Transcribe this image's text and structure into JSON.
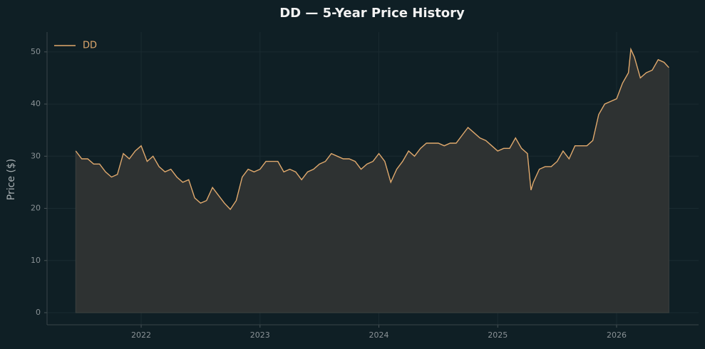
{
  "chart_data": {
    "type": "line",
    "title": "DD — 5-Year Price History",
    "ylabel": "Price ($)",
    "x": [
      2021.45,
      2021.5,
      2021.55,
      2021.6,
      2021.65,
      2021.7,
      2021.75,
      2021.8,
      2021.85,
      2021.9,
      2021.95,
      2022.0,
      2022.05,
      2022.1,
      2022.15,
      2022.2,
      2022.25,
      2022.3,
      2022.35,
      2022.4,
      2022.45,
      2022.5,
      2022.55,
      2022.6,
      2022.65,
      2022.7,
      2022.75,
      2022.8,
      2022.85,
      2022.9,
      2022.95,
      2023.0,
      2023.05,
      2023.1,
      2023.15,
      2023.2,
      2023.25,
      2023.3,
      2023.35,
      2023.4,
      2023.45,
      2023.5,
      2023.55,
      2023.6,
      2023.65,
      2023.7,
      2023.75,
      2023.8,
      2023.85,
      2023.9,
      2023.95,
      2024.0,
      2024.05,
      2024.1,
      2024.15,
      2024.2,
      2024.25,
      2024.3,
      2024.35,
      2024.4,
      2024.45,
      2024.5,
      2024.55,
      2024.6,
      2024.65,
      2024.7,
      2024.75,
      2024.8,
      2024.85,
      2024.9,
      2024.95,
      2025.0,
      2025.05,
      2025.1,
      2025.15,
      2025.2,
      2025.25,
      2025.28,
      2025.3,
      2025.35,
      2025.4,
      2025.45,
      2025.5,
      2025.55,
      2025.6,
      2025.65,
      2025.7,
      2025.75,
      2025.8,
      2025.85,
      2025.9,
      2025.95,
      2026.0,
      2026.05,
      2026.1,
      2026.12,
      2026.15,
      2026.2,
      2026.25,
      2026.3,
      2026.35,
      2026.4,
      2026.44
    ],
    "series": [
      {
        "name": "DD",
        "color": "#e0a96d",
        "fill": "#2e3232",
        "values": [
          31,
          29.5,
          29.5,
          28.5,
          28.5,
          27,
          26,
          26.5,
          30.5,
          29.5,
          31,
          32,
          29,
          30,
          28,
          27,
          27.5,
          26,
          25,
          25.5,
          22,
          21,
          21.5,
          24,
          22.5,
          21,
          19.8,
          21.5,
          26,
          27.5,
          27,
          27.5,
          29,
          29,
          29,
          27,
          27.5,
          27,
          25.5,
          27,
          27.5,
          28.5,
          29,
          30.5,
          30,
          29.5,
          29.5,
          29,
          27.5,
          28.5,
          29,
          30.5,
          29,
          25,
          27.5,
          29,
          31,
          30,
          31.5,
          32.5,
          32.5,
          32.5,
          32,
          32.5,
          32.5,
          34,
          35.5,
          34.5,
          33.5,
          33,
          32,
          31,
          31.5,
          31.5,
          33.5,
          31.5,
          30.5,
          23.5,
          25,
          27.5,
          28,
          28,
          29,
          31,
          29.5,
          32,
          32,
          32,
          33,
          38,
          40,
          40.5,
          41,
          44,
          46,
          50.5,
          49,
          45,
          46,
          46.5,
          48.5,
          48,
          47
        ]
      }
    ],
    "xlim": [
      2021.208,
      2026.69
    ],
    "xticks": [
      2022,
      2023,
      2024,
      2025,
      2026
    ],
    "ylim": [
      -2.32,
      53.8
    ],
    "yticks": [
      0,
      10,
      20,
      30,
      40,
      50
    ],
    "grid": true,
    "legend": "upper left"
  }
}
